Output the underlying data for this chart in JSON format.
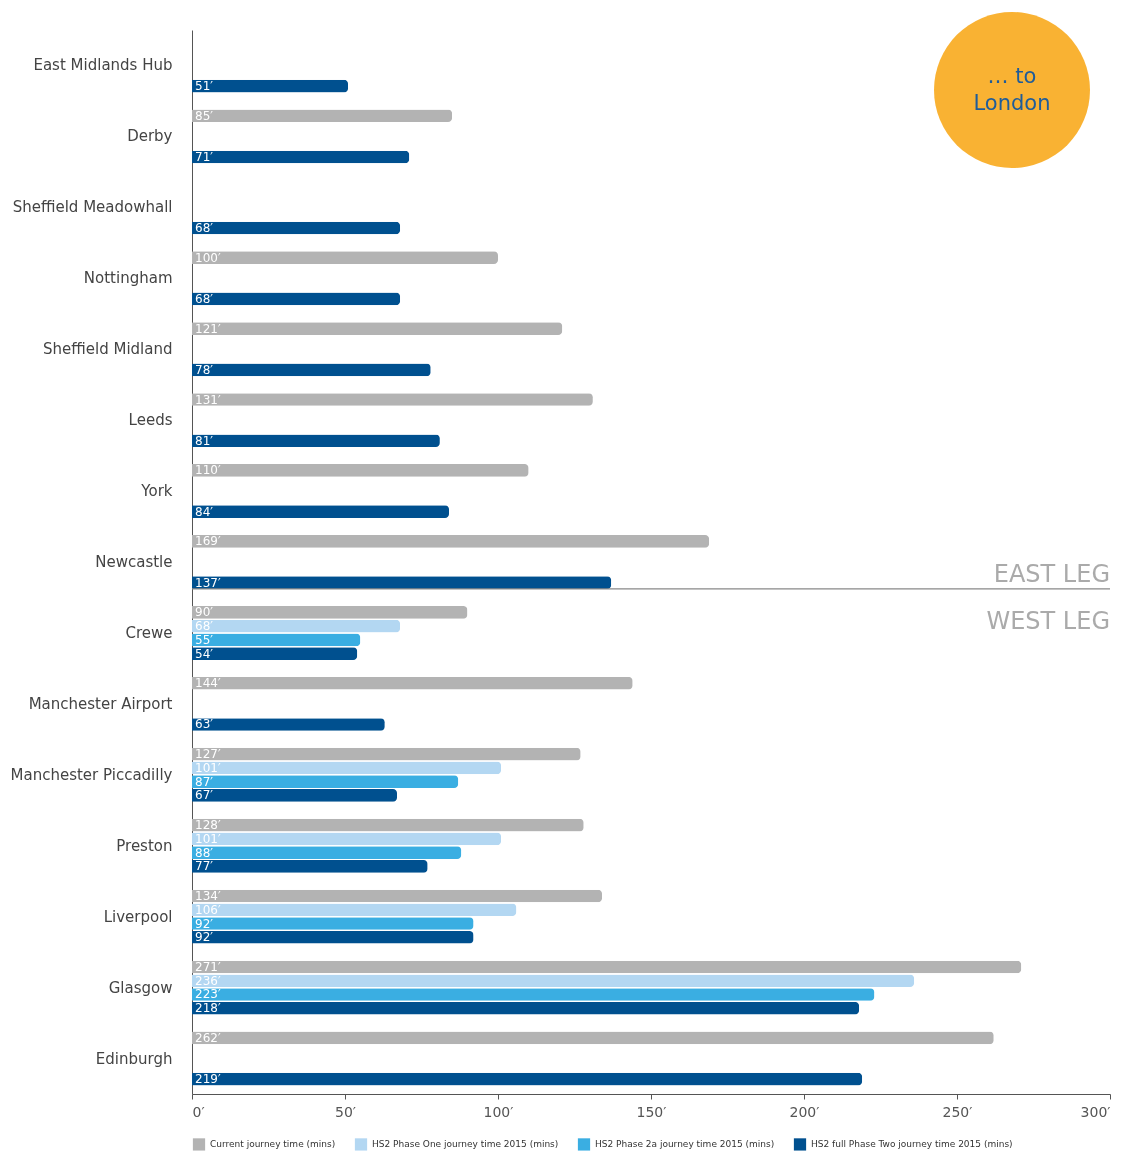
{
  "chart_data": {
    "type": "bar",
    "orientation": "horizontal",
    "title": "… to London",
    "categories": [
      "East Midlands Hub",
      "Derby",
      "Sheffield Meadowhall",
      "Nottingham",
      "Sheffield Midland",
      "Leeds",
      "York",
      "Newcastle",
      "Crewe",
      "Manchester Airport",
      "Manchester Piccadilly",
      "Preston",
      "Liverpool",
      "Glasgow",
      "Edinburgh"
    ],
    "series": [
      {
        "name": "Current journey time (mins)",
        "color": "#b3b3b3",
        "values": [
          null,
          85,
          null,
          100,
          121,
          131,
          110,
          169,
          90,
          144,
          127,
          128,
          134,
          271,
          262
        ],
        "value_labels": [
          null,
          "85′",
          null,
          "100′",
          "121′",
          "131′",
          "110′",
          "169′",
          "90′",
          "144′",
          "127′",
          "128′",
          "134′",
          "271′",
          "262′"
        ]
      },
      {
        "name": "HS2 Phase One journey time 2015 (mins)",
        "color": "#b3d7f2",
        "values": [
          null,
          null,
          null,
          null,
          null,
          null,
          null,
          null,
          68,
          null,
          101,
          101,
          106,
          236,
          null
        ],
        "value_labels": [
          null,
          null,
          null,
          null,
          null,
          null,
          null,
          null,
          "68′",
          null,
          "101′",
          "101′",
          "106′",
          "236′",
          null
        ]
      },
      {
        "name": "HS2 Phase 2a journey time 2015 (mins)",
        "color": "#3aaee2",
        "values": [
          null,
          null,
          null,
          null,
          null,
          null,
          null,
          null,
          55,
          null,
          87,
          88,
          92,
          223,
          null
        ],
        "value_labels": [
          null,
          null,
          null,
          null,
          null,
          null,
          null,
          null,
          "55′",
          null,
          "87′",
          "88′",
          "92′",
          "223′",
          null
        ]
      },
      {
        "name": "HS2 full Phase Two journey time 2015 (mins)",
        "color": "#00508f",
        "values": [
          51,
          71,
          68,
          68,
          78,
          81,
          84,
          137,
          54,
          63,
          67,
          77,
          92,
          218,
          219
        ],
        "value_labels": [
          "51′",
          "71′",
          "68′",
          "68′",
          "78′",
          "81′",
          "84′",
          "137′",
          "54′",
          "63′",
          "67′",
          "77′",
          "92′",
          "218′",
          "219′"
        ]
      }
    ],
    "xlim": [
      0,
      300
    ],
    "xticks": [
      {
        "value": 0,
        "label": "0′"
      },
      {
        "value": 50,
        "label": "50′"
      },
      {
        "value": 100,
        "label": "100′"
      },
      {
        "value": 150,
        "label": "150′"
      },
      {
        "value": 200,
        "label": "200′"
      },
      {
        "value": 250,
        "label": "250′"
      },
      {
        "value": 300,
        "label": "300′"
      }
    ],
    "ref_lines": [
      {
        "axis": "y",
        "value": "Newcastle",
        "color": "#888888"
      }
    ],
    "annotations": [
      "EAST LEG",
      "WEST LEG"
    ],
    "grid": false,
    "legend": "bottom"
  }
}
